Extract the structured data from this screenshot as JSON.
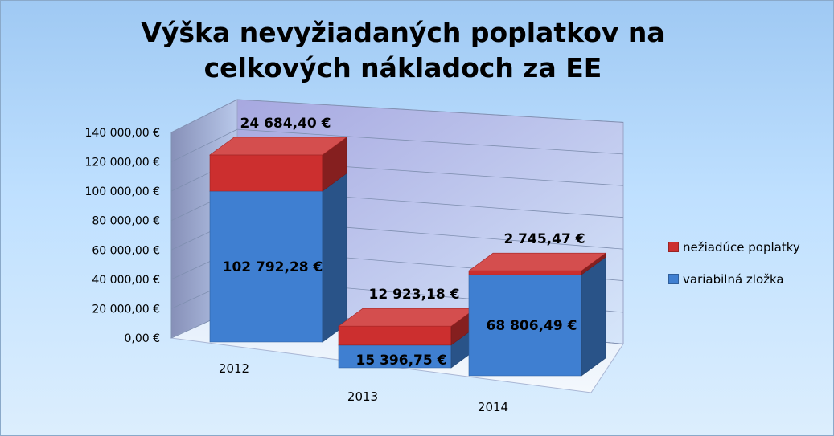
{
  "chart_data": {
    "type": "bar",
    "stacked": true,
    "three_d": true,
    "title": "Výška nevyžiadaných poplatkov na celkových nákladoch za EE",
    "categories": [
      "2012",
      "2013",
      "2014"
    ],
    "series": [
      {
        "name": "variabilná zložka",
        "values": [
          102792.28,
          15396.75,
          68806.49
        ],
        "labels": [
          "102 792,28 €",
          "15 396,75 €",
          "68 806,49 €"
        ],
        "color": "#3f7fd1"
      },
      {
        "name": "nežiadúce poplatky",
        "values": [
          24684.4,
          12923.18,
          2745.47
        ],
        "labels": [
          "24 684,40 €",
          "12 923,18 €",
          "2 745,47 €"
        ],
        "color": "#cc2f2f"
      }
    ],
    "ylim": [
      0,
      140000
    ],
    "yticks": [
      "0,00 €",
      "20 000,00 €",
      "40 000,00 €",
      "60 000,00 €",
      "80 000,00 €",
      "100 000,00 €",
      "120 000,00 €",
      "140 000,00 €"
    ],
    "grid": true,
    "legend_position": "right"
  }
}
